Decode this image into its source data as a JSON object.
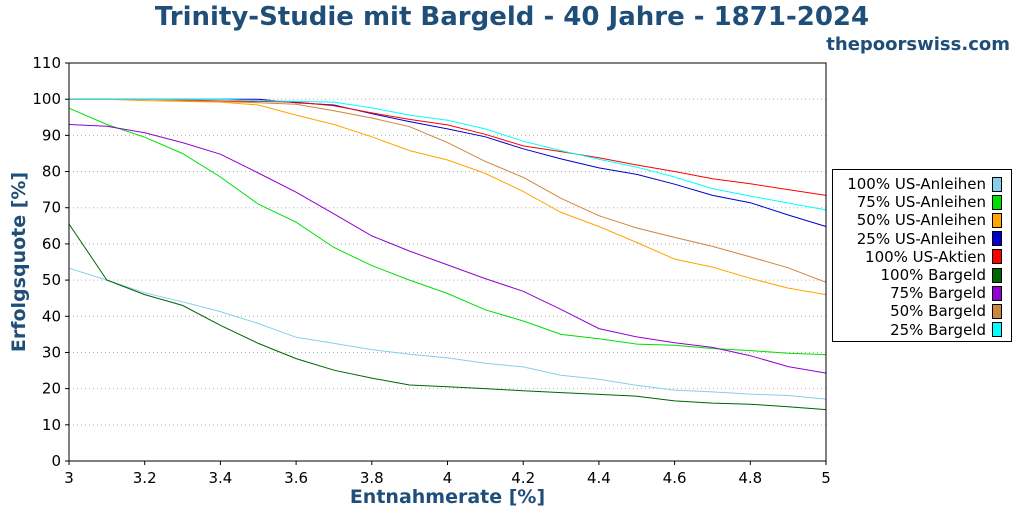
{
  "header": {
    "title": "Trinity-Studie mit Bargeld - 40 Jahre - 1871-2024",
    "site": "thepoorswiss.com"
  },
  "chart_data": {
    "type": "line",
    "title": "Trinity-Studie mit Bargeld - 40 Jahre - 1871-2024",
    "xlabel": "Entnahmerate [%]",
    "ylabel": "Erfolgsquote [%]",
    "xlim": [
      3,
      5
    ],
    "ylim": [
      0,
      110
    ],
    "xticks": [
      "3",
      "3.2",
      "3.4",
      "3.6",
      "3.8",
      "4",
      "4.2",
      "4.4",
      "4.6",
      "4.8",
      "5"
    ],
    "yticks": [
      "0",
      "10",
      "20",
      "30",
      "40",
      "50",
      "60",
      "70",
      "80",
      "90",
      "100",
      "110"
    ],
    "grid": "horizontal dotted",
    "legend_position": "right",
    "x": [
      3,
      3.1,
      3.2,
      3.3,
      3.4,
      3.5,
      3.6,
      3.7,
      3.8,
      3.9,
      4,
      4.1,
      4.2,
      4.3,
      4.4,
      4.5,
      4.6,
      4.7,
      4.8,
      4.9,
      5
    ],
    "series": [
      {
        "name": "100% US-Anleihen",
        "color": "#87ceeb",
        "values": [
          53.3,
          50,
          46.5,
          44,
          41.3,
          38,
          34.2,
          32.5,
          30.8,
          29.5,
          28.5,
          27,
          26,
          23.7,
          22.6,
          20.9,
          19.6,
          19.1,
          18.5,
          18.1,
          17.1
        ]
      },
      {
        "name": "75% US-Anleihen",
        "color": "#00e000",
        "values": [
          97.5,
          93,
          89.5,
          85,
          78.5,
          71,
          66,
          59,
          54,
          50,
          46.3,
          41.8,
          38.7,
          35,
          33.8,
          32.3,
          32,
          31.1,
          30.5,
          29.8,
          29.4
        ]
      },
      {
        "name": "50% US-Anleihen",
        "color": "#ffa500",
        "values": [
          100,
          100,
          99.6,
          99.4,
          99.2,
          98.4,
          95.6,
          93,
          89.6,
          85.8,
          83.2,
          79.5,
          74.5,
          68.7,
          64.8,
          60.4,
          55.8,
          53.6,
          50.5,
          47.8,
          46
        ]
      },
      {
        "name": "25% US-Anleihen",
        "color": "#0000cc",
        "values": [
          100,
          100,
          100,
          100,
          100,
          100,
          99,
          98.4,
          96,
          93.8,
          91.8,
          89.6,
          86.3,
          83.5,
          81,
          79.2,
          76.5,
          73.4,
          71.4,
          68,
          64.8
        ]
      },
      {
        "name": "100% US-Aktien",
        "color": "#ff0000",
        "values": [
          100,
          100,
          100,
          99.8,
          99.5,
          99.4,
          99.2,
          98.2,
          96.2,
          94.4,
          92.9,
          90.3,
          87.1,
          85.5,
          83.8,
          81.8,
          80,
          78,
          76.6,
          75,
          73.4
        ]
      },
      {
        "name": "100% Bargeld",
        "color": "#006400",
        "values": [
          65.5,
          50,
          46,
          43,
          37.5,
          32.5,
          28.3,
          25.1,
          22.9,
          21,
          20.5,
          20,
          19.4,
          18.9,
          18.4,
          17.9,
          16.6,
          16,
          15.7,
          15,
          14.2
        ]
      },
      {
        "name": "75% Bargeld",
        "color": "#9400d3",
        "values": [
          93,
          92.5,
          90.7,
          88,
          84.8,
          79.6,
          74.3,
          68.3,
          62.2,
          58,
          54.2,
          50.4,
          46.9,
          41.9,
          36.6,
          34.3,
          32.7,
          31.4,
          29.1,
          26.1,
          24.3
        ]
      },
      {
        "name": "50% Bargeld",
        "color": "#cd853f",
        "values": [
          100,
          100,
          100,
          99.6,
          99.4,
          99,
          98.6,
          96.8,
          94.8,
          92.4,
          88,
          82.8,
          78.4,
          72.6,
          67.8,
          64.4,
          61.8,
          59.3,
          56.4,
          53.4,
          49.4
        ]
      },
      {
        "name": "25% Bargeld",
        "color": "#00ffff",
        "values": [
          100,
          100,
          100,
          100,
          100,
          99.6,
          99.4,
          99.2,
          97.6,
          95.6,
          94.2,
          91.8,
          88.4,
          85.8,
          83.4,
          81.2,
          78.5,
          75.3,
          73.2,
          71.3,
          69.4
        ]
      }
    ]
  }
}
